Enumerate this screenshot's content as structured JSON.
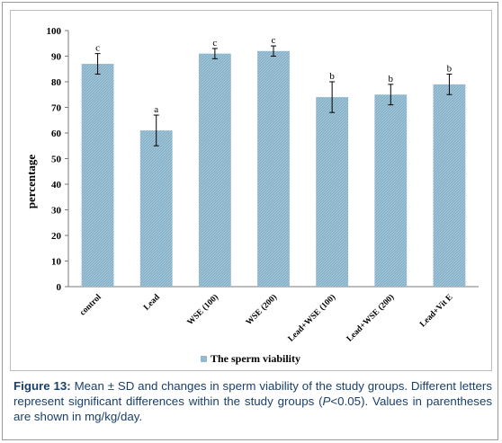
{
  "chart_data": {
    "type": "bar",
    "ylabel": "percentage",
    "ylim": [
      0,
      100
    ],
    "yticks": [
      0,
      10,
      20,
      30,
      40,
      50,
      60,
      70,
      80,
      90,
      100
    ],
    "categories": [
      "control",
      "Lead",
      "WSE (100)",
      "WSE (200)",
      "Lead+WSE (100)",
      "Lead+WSE (200)",
      "Lead+Vit E"
    ],
    "series": [
      {
        "name": "The sperm viability",
        "values": [
          87,
          61,
          91,
          92,
          74,
          75,
          79
        ],
        "errors": [
          4,
          6,
          2,
          2,
          6,
          4,
          4
        ],
        "letters": [
          "c",
          "a",
          "c",
          "c",
          "b",
          "b",
          "b"
        ]
      }
    ],
    "legend_position": "bottom",
    "grid": false,
    "bar_color": "#9fc3d6"
  },
  "caption": {
    "label": "Figure 13:",
    "text_before": " Mean ± SD and changes in sperm viability of the study groups. Different letters represent significant differences within the study groups (",
    "p_symbol": "P",
    "text_after": "<0.05). Values in parentheses are shown in mg/kg/day."
  }
}
